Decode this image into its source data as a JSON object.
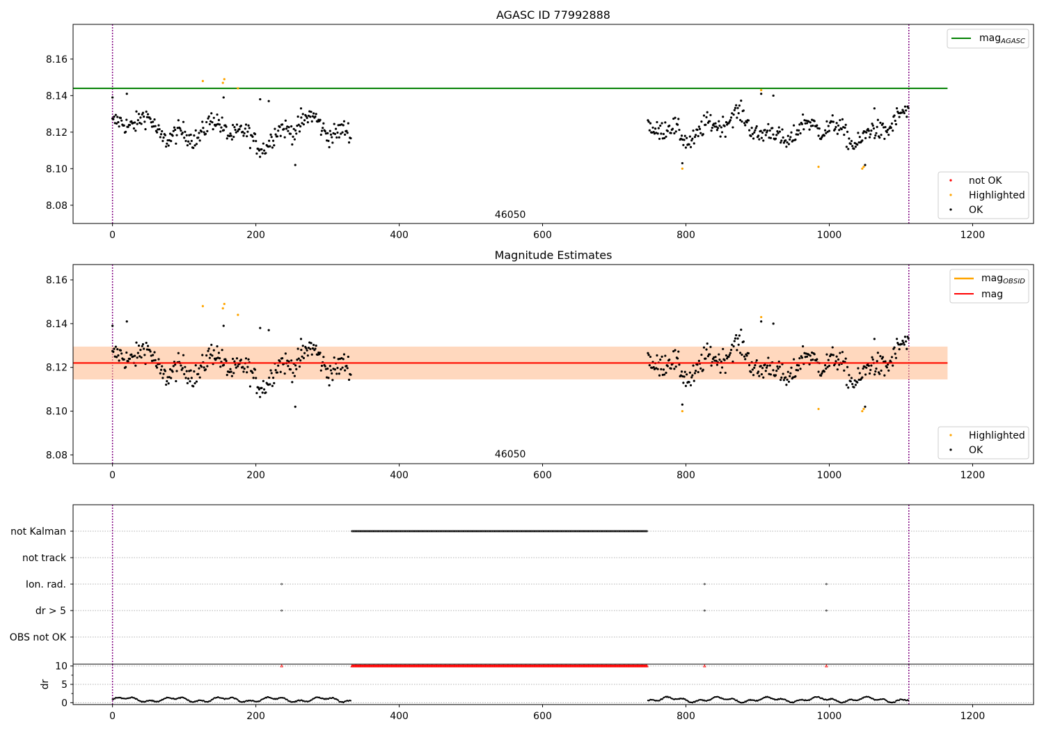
{
  "chart_data": [
    {
      "type": "scatter",
      "title": "AGASC ID 77992888",
      "xlim": [
        -55,
        1285
      ],
      "ylim": [
        8.07,
        8.179
      ],
      "x_ticks": [
        0,
        200,
        400,
        600,
        800,
        1000,
        1200
      ],
      "y_ticks": [
        8.08,
        8.1,
        8.12,
        8.14,
        8.16
      ],
      "vlines": [
        0,
        1111
      ],
      "hline": {
        "name": "mag_AGASC",
        "legend_main": "mag",
        "legend_sub": "AGASC",
        "value": 8.144,
        "x_range": [
          -55,
          1165
        ],
        "color": "#008000"
      },
      "segment_label": {
        "text": "46050",
        "x": 555,
        "y": 8.075
      },
      "series": [
        {
          "name": "not OK",
          "color": "#ff0000",
          "points": []
        },
        {
          "name": "Highlighted",
          "color": "#ffa500",
          "points": [
            [
              126,
              8.148
            ],
            [
              154,
              8.147
            ],
            [
              156,
              8.149
            ],
            [
              175,
              8.144
            ],
            [
              795,
              8.1
            ],
            [
              905,
              8.143
            ],
            [
              985,
              8.101
            ],
            [
              1046,
              8.1
            ],
            [
              1048,
              8.101
            ]
          ]
        },
        {
          "name": "OK",
          "color": "#000000",
          "segments": [
            {
              "x0": 0,
              "x1": 333,
              "points": [
                [
                  0,
                  8.139
                ],
                [
                  20,
                  8.141
                ],
                [
                  155,
                  8.139
                ],
                [
                  206,
                  8.138
                ],
                [
                  218,
                  8.137
                ],
                [
                  255,
                  8.102
                ],
                [
                  263,
                  8.133
                ]
              ]
            },
            {
              "x0": 747,
              "x1": 1111,
              "points": [
                [
                  795,
                  8.103
                ],
                [
                  905,
                  8.141
                ],
                [
                  922,
                  8.14
                ],
                [
                  1050,
                  8.102
                ],
                [
                  1063,
                  8.133
                ]
              ]
            }
          ]
        }
      ],
      "legend_lines_position": "upper right",
      "legend_points_position": "lower right"
    },
    {
      "type": "scatter",
      "title": "Magnitude Estimates",
      "xlim": [
        -55,
        1285
      ],
      "ylim": [
        8.076,
        8.167
      ],
      "x_ticks": [
        0,
        200,
        400,
        600,
        800,
        1000,
        1200
      ],
      "y_ticks": [
        8.08,
        8.1,
        8.12,
        8.14,
        8.16
      ],
      "vlines": [
        0,
        1111
      ],
      "mag_obsid": {
        "name": "mag_OBSID",
        "legend_main": "mag",
        "legend_sub": "OBSID",
        "value": 8.122,
        "band": [
          8.1145,
          8.1295
        ],
        "x_range": [
          -55,
          1165
        ],
        "color": "#ffa500"
      },
      "mag": {
        "name": "mag",
        "value": 8.122,
        "band": [
          8.1145,
          8.1295
        ],
        "x_range": [
          -55,
          1165
        ],
        "color": "#ff0000"
      },
      "segment_label": {
        "text": "46050",
        "x": 555,
        "y": 8.0805
      },
      "series": [
        {
          "name": "Highlighted",
          "color": "#ffa500",
          "points": [
            [
              126,
              8.148
            ],
            [
              154,
              8.147
            ],
            [
              156,
              8.149
            ],
            [
              175,
              8.144
            ],
            [
              795,
              8.1
            ],
            [
              905,
              8.143
            ],
            [
              985,
              8.101
            ],
            [
              1046,
              8.1
            ],
            [
              1048,
              8.101
            ]
          ]
        },
        {
          "name": "OK",
          "color": "#000000",
          "segments": [
            {
              "x0": 0,
              "x1": 333
            },
            {
              "x0": 747,
              "x1": 1111
            }
          ]
        }
      ],
      "legend_lines_position": "upper right",
      "legend_points_position": "lower right"
    },
    {
      "type": "scatter",
      "title": "",
      "xlim": [
        -55,
        1285
      ],
      "categories": [
        "not Kalman",
        "not track",
        "Ion. rad.",
        "dr > 5",
        "OBS not OK"
      ],
      "flags": {
        "not Kalman": [
          [
            334,
            746
          ]
        ],
        "not track": [],
        "Ion. rad.": [
          [
            236,
            236
          ],
          [
            826,
            826
          ],
          [
            996,
            996
          ]
        ],
        "dr > 5": [
          [
            236,
            236
          ],
          [
            826,
            826
          ],
          [
            996,
            996
          ]
        ],
        "OBS not OK": []
      },
      "grid": true,
      "color": "#000000"
    },
    {
      "type": "scatter",
      "title": "",
      "ylabel": "dr",
      "xlim": [
        -55,
        1285
      ],
      "ylim": [
        -0.5,
        10.5
      ],
      "x_ticks": [
        0,
        200,
        400,
        600,
        800,
        1000,
        1200
      ],
      "y_ticks": [
        0,
        5,
        10
      ],
      "segments": [
        {
          "x0": 0,
          "x1": 333
        },
        {
          "x0": 747,
          "x1": 1111
        }
      ],
      "clipped_points": {
        "ranges": [
          [
            236,
            236
          ],
          [
            334,
            746
          ],
          [
            826,
            826
          ],
          [
            996,
            996
          ]
        ],
        "value": 10,
        "color": "#ff0000"
      },
      "grid": true
    }
  ]
}
